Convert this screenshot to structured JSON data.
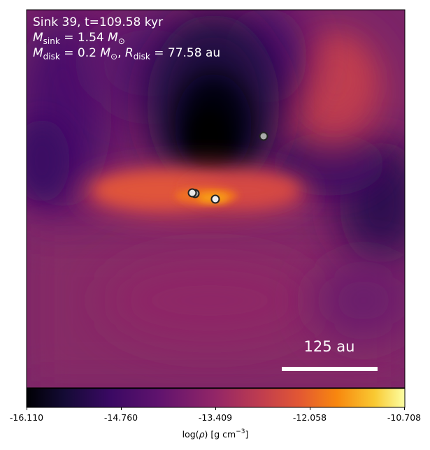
{
  "annotation": {
    "line1": "Sink 39, t=109.58 kyr",
    "line2_sym": "M",
    "line2_sub": "sink",
    "line2_eq": " = 1.54 ",
    "line2_unit": "M",
    "line2_unit_sub": "⊙",
    "line3_sym": "M",
    "line3_sub": "disk",
    "line3_eq": " = 0.2 ",
    "line3_unit": "M",
    "line3_unit_sub": "⊙",
    "line3_sep": ", ",
    "line3_sym2": "R",
    "line3_sub2": "disk",
    "line3_eq2": " = 77.58",
    "line3_unit2": " au"
  },
  "scalebar": {
    "label": "125 au"
  },
  "colorbar": {
    "ticks": [
      "-16.110",
      "-14.760",
      "-13.409",
      "-12.058",
      "-10.708"
    ],
    "label_prefix": "log(",
    "label_rho": "ρ",
    "label_mid": ") [g cm",
    "label_exp": "−3",
    "label_suffix": "]",
    "colormap": "inferno-like"
  },
  "sinks": [
    {
      "id": "sink-a"
    },
    {
      "id": "sink-b"
    },
    {
      "id": "sink-c"
    },
    {
      "id": "sink-d"
    }
  ]
}
